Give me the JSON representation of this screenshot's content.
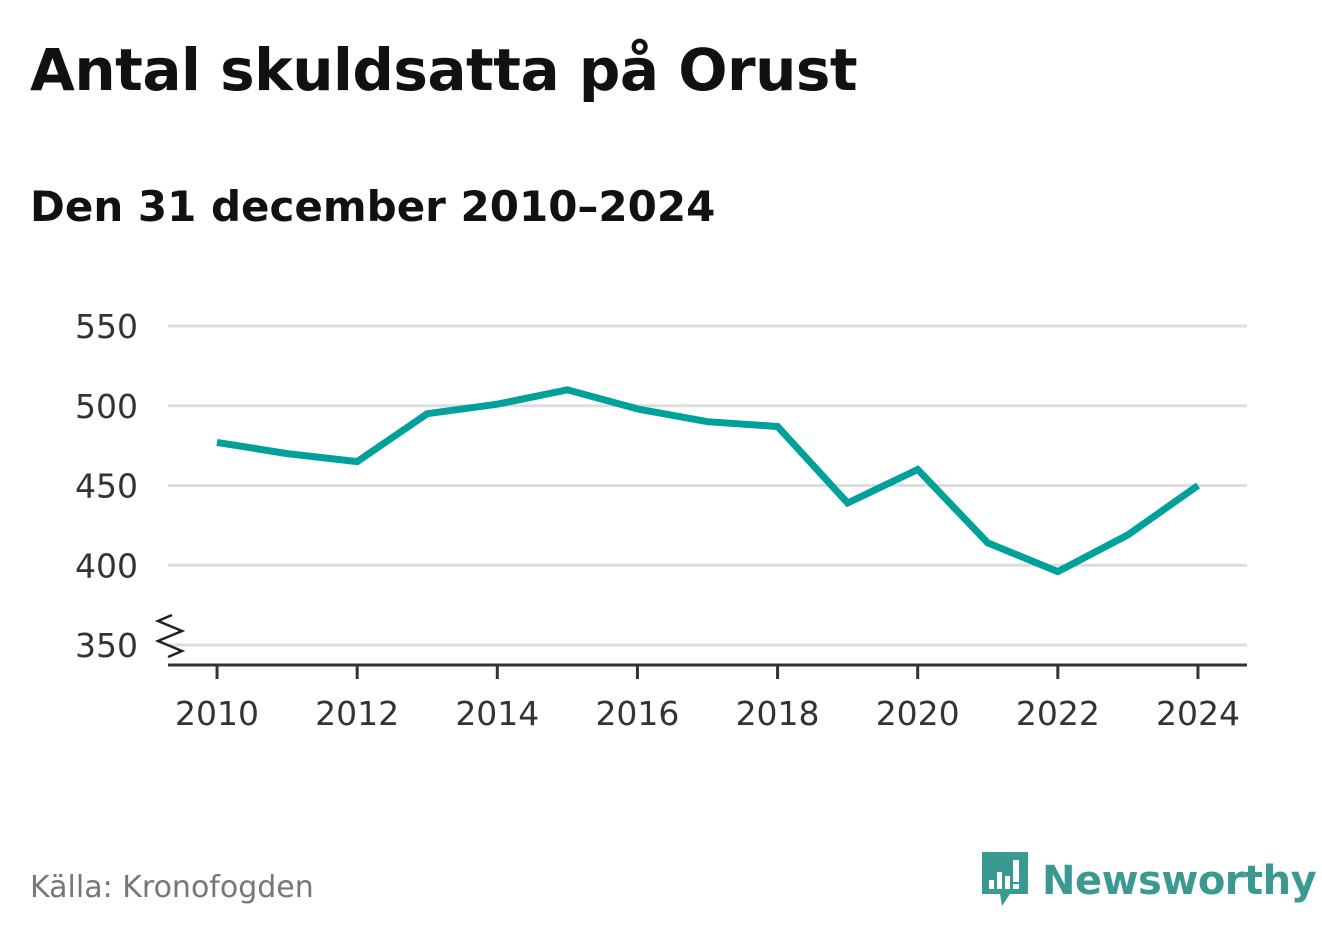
{
  "chart_data": {
    "type": "line",
    "title": "Antal skuldsatta på Orust",
    "subtitle": "Den 31 december 2010–2024",
    "xlabel": "",
    "ylabel": "",
    "x": [
      2010,
      2011,
      2012,
      2013,
      2014,
      2015,
      2016,
      2017,
      2018,
      2019,
      2020,
      2021,
      2022,
      2023,
      2024
    ],
    "series": [
      {
        "values": [
          477,
          470,
          465,
          495,
          501,
          510,
          498,
          490,
          487,
          439,
          460,
          414,
          396,
          419,
          450
        ]
      }
    ],
    "xticks": [
      "2010",
      "2012",
      "2014",
      "2016",
      "2018",
      "2020",
      "2022",
      "2024"
    ],
    "yticks": [
      "350",
      "400",
      "450",
      "500",
      "550"
    ],
    "ylim": [
      350,
      550
    ],
    "xlim": [
      2009.3,
      2024.7
    ],
    "y_axis_break": true,
    "grid": true,
    "colors": {
      "line": "#00a19a",
      "grid": "#dddddd",
      "axis": "#333333"
    }
  },
  "source": "Källa: Kronofogden",
  "brand": {
    "name": "Newsworthy",
    "color": "#3a9a92",
    "icon": "bar-chart-speech-bubble-icon"
  }
}
